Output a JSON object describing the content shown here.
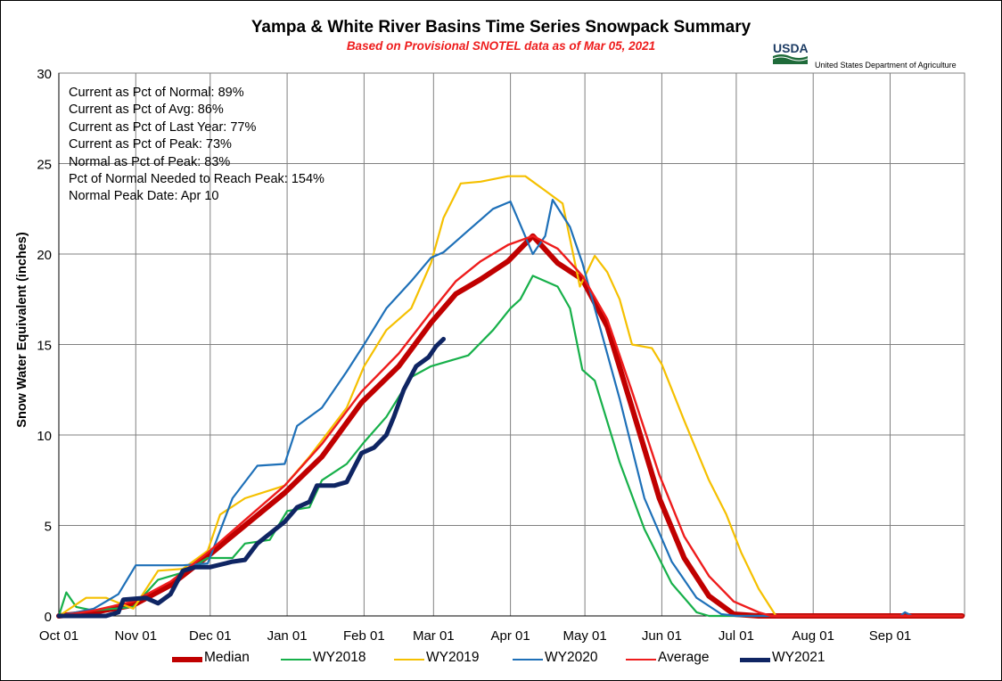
{
  "chart_data": {
    "type": "line",
    "title": "Yampa & White River Basins Time Series Snowpack Summary",
    "subtitle": "Based on Provisional SNOTEL data as of Mar 05, 2021",
    "ylabel": "Snow Water Equivalent (inches)",
    "xlabel": "",
    "ylim": [
      0,
      30
    ],
    "yticks": [
      0,
      5,
      10,
      15,
      20,
      25,
      30
    ],
    "x_ticks": [
      "Oct 01",
      "Nov 01",
      "Dec 01",
      "Jan 01",
      "Feb 01",
      "Mar 01",
      "Apr 01",
      "May 01",
      "Jun 01",
      "Jul 01",
      "Aug 01",
      "Sep 01"
    ],
    "grid": true,
    "legend_position": "bottom",
    "stats": [
      "Current as Pct of Normal: 89%",
      "Current as Pct of Avg: 86%",
      "Current as Pct of Last Year: 77%",
      "Current as Pct of Peak: 73%",
      "Normal as Pct of Peak: 83%",
      "Pct of Normal Needed to Reach Peak: 154%",
      "Normal Peak Date: Apr 10"
    ],
    "series": [
      {
        "name": "Median",
        "color": "#c00000",
        "width": 6,
        "points": [
          [
            "Oct 01",
            0
          ],
          [
            "Oct 15",
            0.2
          ],
          [
            "Oct 31",
            0.6
          ],
          [
            "Nov 15",
            1.7
          ],
          [
            "Nov 30",
            3.3
          ],
          [
            "Dec 15",
            5.0
          ],
          [
            "Dec 31",
            6.8
          ],
          [
            "Jan 15",
            8.8
          ],
          [
            "Jan 31",
            11.8
          ],
          [
            "Feb 15",
            13.8
          ],
          [
            "Feb 28",
            16.2
          ],
          [
            "Mar 10",
            17.8
          ],
          [
            "Mar 20",
            18.6
          ],
          [
            "Mar 31",
            19.6
          ],
          [
            "Apr 10",
            21.0
          ],
          [
            "Apr 20",
            19.5
          ],
          [
            "Apr 30",
            18.6
          ],
          [
            "May 10",
            16.0
          ],
          [
            "May 20",
            11.5
          ],
          [
            "May 31",
            6.5
          ],
          [
            "Jun 10",
            3.2
          ],
          [
            "Jun 20",
            1.1
          ],
          [
            "Jun 30",
            0.1
          ],
          [
            "Jul 10",
            0
          ],
          [
            "Sep 30",
            0
          ]
        ]
      },
      {
        "name": "WY2018",
        "color": "#17b04a",
        "width": 2.2,
        "points": [
          [
            "Oct 01",
            0
          ],
          [
            "Oct 04",
            1.3
          ],
          [
            "Oct 08",
            0.5
          ],
          [
            "Oct 15",
            0.3
          ],
          [
            "Oct 31",
            0.5
          ],
          [
            "Nov 10",
            2.0
          ],
          [
            "Nov 20",
            2.4
          ],
          [
            "Nov 30",
            3.2
          ],
          [
            "Dec 10",
            3.2
          ],
          [
            "Dec 15",
            4.0
          ],
          [
            "Dec 25",
            4.2
          ],
          [
            "Jan 01",
            5.8
          ],
          [
            "Jan 10",
            6.0
          ],
          [
            "Jan 15",
            7.5
          ],
          [
            "Jan 25",
            8.4
          ],
          [
            "Feb 01",
            9.6
          ],
          [
            "Feb 10",
            11.0
          ],
          [
            "Feb 20",
            13.2
          ],
          [
            "Feb 28",
            13.8
          ],
          [
            "Mar 05",
            14.0
          ],
          [
            "Mar 15",
            14.4
          ],
          [
            "Mar 25",
            15.8
          ],
          [
            "Apr 01",
            17.0
          ],
          [
            "Apr 05",
            17.5
          ],
          [
            "Apr 10",
            18.8
          ],
          [
            "Apr 20",
            18.2
          ],
          [
            "Apr 25",
            17.0
          ],
          [
            "Apr 30",
            13.6
          ],
          [
            "May 05",
            13.0
          ],
          [
            "May 15",
            8.5
          ],
          [
            "May 25",
            4.8
          ],
          [
            "Jun 05",
            1.8
          ],
          [
            "Jun 15",
            0.2
          ],
          [
            "Jun 20",
            0
          ],
          [
            "Sep 30",
            0
          ]
        ]
      },
      {
        "name": "WY2019",
        "color": "#f5c000",
        "width": 2.2,
        "points": [
          [
            "Oct 01",
            0
          ],
          [
            "Oct 12",
            1.0
          ],
          [
            "Oct 20",
            1.0
          ],
          [
            "Oct 31",
            0.4
          ],
          [
            "Nov 10",
            2.5
          ],
          [
            "Nov 20",
            2.6
          ],
          [
            "Nov 30",
            3.6
          ],
          [
            "Dec 05",
            5.6
          ],
          [
            "Dec 15",
            6.5
          ],
          [
            "Dec 31",
            7.2
          ],
          [
            "Jan 10",
            8.8
          ],
          [
            "Jan 15",
            9.7
          ],
          [
            "Jan 25",
            11.5
          ],
          [
            "Feb 01",
            13.8
          ],
          [
            "Feb 10",
            15.8
          ],
          [
            "Feb 20",
            17.0
          ],
          [
            "Feb 28",
            19.5
          ],
          [
            "Mar 05",
            22.0
          ],
          [
            "Mar 12",
            23.9
          ],
          [
            "Mar 20",
            24.0
          ],
          [
            "Mar 31",
            24.3
          ],
          [
            "Apr 07",
            24.3
          ],
          [
            "Apr 15",
            23.5
          ],
          [
            "Apr 22",
            22.8
          ],
          [
            "Apr 29",
            18.2
          ],
          [
            "May 05",
            19.9
          ],
          [
            "May 10",
            19.0
          ],
          [
            "May 15",
            17.5
          ],
          [
            "May 20",
            15.0
          ],
          [
            "May 28",
            14.8
          ],
          [
            "Jun 01",
            13.9
          ],
          [
            "Jun 10",
            10.8
          ],
          [
            "Jun 20",
            7.5
          ],
          [
            "Jun 27",
            5.6
          ],
          [
            "Jul 03",
            3.5
          ],
          [
            "Jul 10",
            1.5
          ],
          [
            "Jul 17",
            0
          ],
          [
            "Sep 30",
            0
          ]
        ]
      },
      {
        "name": "WY2020",
        "color": "#1e70b8",
        "width": 2.2,
        "points": [
          [
            "Oct 01",
            0
          ],
          [
            "Oct 15",
            0.4
          ],
          [
            "Oct 25",
            1.2
          ],
          [
            "Nov 01",
            2.8
          ],
          [
            "Nov 20",
            2.8
          ],
          [
            "Nov 30",
            2.9
          ],
          [
            "Dec 10",
            6.5
          ],
          [
            "Dec 20",
            8.3
          ],
          [
            "Dec 31",
            8.4
          ],
          [
            "Jan 05",
            10.5
          ],
          [
            "Jan 15",
            11.5
          ],
          [
            "Jan 25",
            13.5
          ],
          [
            "Feb 01",
            15.0
          ],
          [
            "Feb 10",
            17.0
          ],
          [
            "Feb 20",
            18.5
          ],
          [
            "Feb 28",
            19.8
          ],
          [
            "Mar 05",
            20.1
          ],
          [
            "Mar 15",
            21.3
          ],
          [
            "Mar 25",
            22.5
          ],
          [
            "Apr 01",
            22.9
          ],
          [
            "Apr 10",
            20.0
          ],
          [
            "Apr 15",
            21.0
          ],
          [
            "Apr 18",
            23.0
          ],
          [
            "Apr 25",
            21.5
          ],
          [
            "Apr 30",
            19.5
          ],
          [
            "May 05",
            17.0
          ],
          [
            "May 15",
            12.0
          ],
          [
            "May 25",
            6.5
          ],
          [
            "Jun 05",
            3.0
          ],
          [
            "Jun 15",
            1.0
          ],
          [
            "Jun 25",
            0.1
          ],
          [
            "Jul 01",
            0
          ],
          [
            "Sep 05",
            0
          ],
          [
            "Sep 07",
            0.2
          ],
          [
            "Sep 10",
            0
          ],
          [
            "Sep 30",
            0
          ]
        ]
      },
      {
        "name": "Average",
        "color": "#ee1c1c",
        "width": 2.4,
        "points": [
          [
            "Oct 01",
            0
          ],
          [
            "Oct 15",
            0.3
          ],
          [
            "Oct 31",
            0.8
          ],
          [
            "Nov 15",
            1.9
          ],
          [
            "Nov 30",
            3.5
          ],
          [
            "Dec 15",
            5.3
          ],
          [
            "Dec 31",
            7.2
          ],
          [
            "Jan 15",
            9.5
          ],
          [
            "Jan 31",
            12.4
          ],
          [
            "Feb 15",
            14.5
          ],
          [
            "Feb 28",
            16.8
          ],
          [
            "Mar 10",
            18.5
          ],
          [
            "Mar 20",
            19.6
          ],
          [
            "Mar 31",
            20.5
          ],
          [
            "Apr 10",
            21.0
          ],
          [
            "Apr 20",
            20.3
          ],
          [
            "Apr 30",
            18.8
          ],
          [
            "May 10",
            16.4
          ],
          [
            "May 20",
            12.4
          ],
          [
            "May 31",
            7.8
          ],
          [
            "Jun 10",
            4.4
          ],
          [
            "Jun 20",
            2.2
          ],
          [
            "Jun 30",
            0.8
          ],
          [
            "Jul 10",
            0.2
          ],
          [
            "Jul 15",
            0
          ],
          [
            "Sep 30",
            0
          ]
        ]
      },
      {
        "name": "WY2021",
        "color": "#0f2563",
        "width": 5,
        "points": [
          [
            "Oct 01",
            0
          ],
          [
            "Oct 10",
            0
          ],
          [
            "Oct 20",
            0
          ],
          [
            "Oct 25",
            0.2
          ],
          [
            "Oct 27",
            0.9
          ],
          [
            "Nov 05",
            1.0
          ],
          [
            "Nov 10",
            0.7
          ],
          [
            "Nov 15",
            1.2
          ],
          [
            "Nov 20",
            2.5
          ],
          [
            "Nov 25",
            2.7
          ],
          [
            "Dec 01",
            2.7
          ],
          [
            "Dec 10",
            3.0
          ],
          [
            "Dec 15",
            3.1
          ],
          [
            "Dec 20",
            4.0
          ],
          [
            "Dec 31",
            5.2
          ],
          [
            "Jan 05",
            6.0
          ],
          [
            "Jan 10",
            6.3
          ],
          [
            "Jan 13",
            7.2
          ],
          [
            "Jan 20",
            7.2
          ],
          [
            "Jan 25",
            7.4
          ],
          [
            "Jan 31",
            9.0
          ],
          [
            "Feb 05",
            9.3
          ],
          [
            "Feb 10",
            10.0
          ],
          [
            "Feb 13",
            11.0
          ],
          [
            "Feb 17",
            12.5
          ],
          [
            "Feb 22",
            13.8
          ],
          [
            "Feb 27",
            14.3
          ],
          [
            "Mar 02",
            14.9
          ],
          [
            "Mar 05",
            15.3
          ]
        ]
      }
    ]
  }
}
